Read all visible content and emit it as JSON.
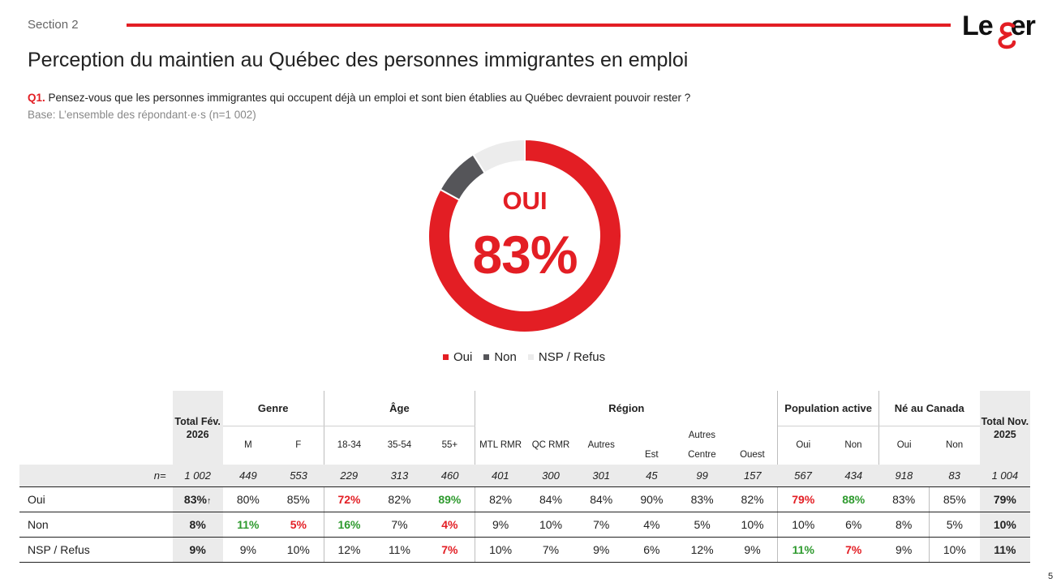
{
  "header": {
    "section": "Section 2",
    "logo_text": "Le",
    "logo_text_end": "er",
    "title": "Perception du maintien au Québec des personnes immigrantes en emploi",
    "question_num": "Q1.",
    "question_text": " Pensez-vous que les personnes immigrantes qui occupent déjà un emploi et sont bien établies au Québec devraient pouvoir rester ?",
    "base": "Base: L’ensemble des répondant·e·s (n=1 002)"
  },
  "colors": {
    "oui": "#e31e24",
    "non": "#555559",
    "nsp": "#ececec",
    "positive": "#2e9a2e",
    "negative": "#e31e24"
  },
  "chart_data": {
    "type": "pie",
    "variant": "donut",
    "center_label": "OUI",
    "center_value": "83%",
    "categories": [
      "Oui",
      "Non",
      "NSP / Refus"
    ],
    "values": [
      83,
      8,
      9
    ],
    "legend_position": "below"
  },
  "legend": [
    {
      "label": "Oui",
      "color": "#e31e24"
    },
    {
      "label": "Non",
      "color": "#555559"
    },
    {
      "label": "NSP / Refus",
      "color": "#ececec"
    }
  ],
  "table": {
    "total_feb_label": "Total Fév. 2026",
    "total_nov_label": "Total Nov. 2025",
    "groups": {
      "genre": "Genre",
      "age": "Âge",
      "region": "Région",
      "population": "Population active",
      "ne": "Né au Canada",
      "autres_region": "Autres"
    },
    "subheaders": {
      "m": "M",
      "f": "F",
      "a1834": "18-34",
      "a3554": "35-54",
      "a55": "55+",
      "mtl": "MTL RMR",
      "qc": "QC RMR",
      "autres": "Autres",
      "est": "Est",
      "centre": "Centre",
      "ouest": "Ouest",
      "pop_oui": "Oui",
      "pop_non": "Non",
      "ne_oui": "Oui",
      "ne_non": "Non"
    },
    "n_label": "n=",
    "n_values": [
      "1 002",
      "449",
      "553",
      "229",
      "313",
      "460",
      "401",
      "300",
      "301",
      "45",
      "99",
      "157",
      "567",
      "434",
      "918",
      "83",
      "1 004"
    ],
    "rows": [
      {
        "label": "Oui",
        "total": "83%",
        "total_arrow": "↑",
        "values": [
          "80%",
          "85%",
          "72%",
          "82%",
          "89%",
          "82%",
          "84%",
          "84%",
          "90%",
          "83%",
          "82%",
          "79%",
          "88%",
          "83%",
          "85%"
        ],
        "flags": [
          "",
          "",
          "neg",
          "",
          "pos",
          "",
          "",
          "",
          "",
          "",
          "",
          "neg",
          "pos",
          "",
          ""
        ],
        "total_nov": "79%"
      },
      {
        "label": "Non",
        "total": "8%",
        "total_arrow": "",
        "values": [
          "11%",
          "5%",
          "16%",
          "7%",
          "4%",
          "9%",
          "10%",
          "7%",
          "4%",
          "5%",
          "10%",
          "10%",
          "6%",
          "8%",
          "5%"
        ],
        "flags": [
          "pos",
          "neg",
          "pos",
          "",
          "neg",
          "",
          "",
          "",
          "",
          "",
          "",
          "",
          "",
          "",
          ""
        ],
        "total_nov": "10%"
      },
      {
        "label": "NSP / Refus",
        "total": "9%",
        "total_arrow": "",
        "values": [
          "9%",
          "10%",
          "12%",
          "11%",
          "7%",
          "10%",
          "7%",
          "9%",
          "6%",
          "12%",
          "9%",
          "11%",
          "7%",
          "9%",
          "10%"
        ],
        "flags": [
          "",
          "",
          "",
          "",
          "neg",
          "",
          "",
          "",
          "",
          "",
          "",
          "pos",
          "neg",
          "",
          ""
        ],
        "total_nov": "11%"
      }
    ]
  },
  "page_number": "5"
}
